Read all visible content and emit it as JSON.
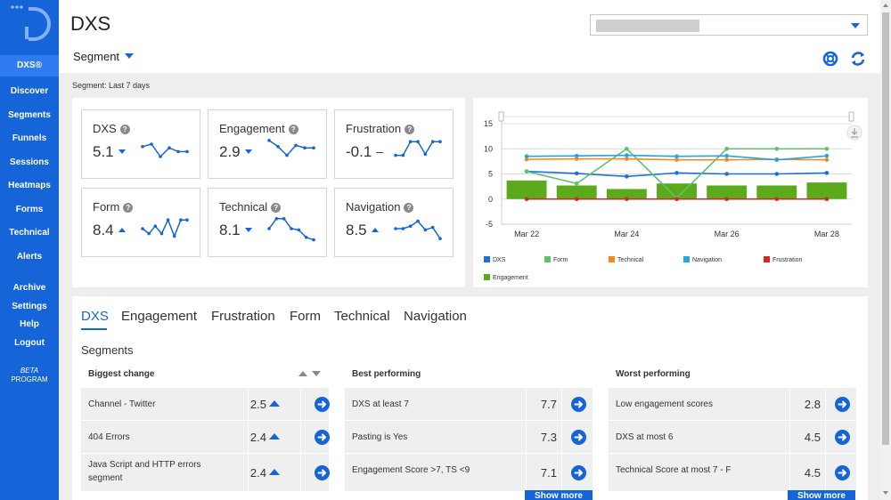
{
  "app": {
    "title": "DXS"
  },
  "header": {
    "segment_label": "Segment",
    "site_select_value": ""
  },
  "sidebar": {
    "items": [
      {
        "label": "DXS®",
        "active": true
      },
      {
        "label": "Discover"
      },
      {
        "label": "Segments"
      },
      {
        "label": "Funnels"
      },
      {
        "label": "Sessions"
      },
      {
        "label": "Heatmaps"
      },
      {
        "label": "Forms"
      },
      {
        "label": "Technical"
      },
      {
        "label": "Alerts"
      },
      {
        "label": "Archive"
      },
      {
        "label": "Settings"
      },
      {
        "label": "Help"
      },
      {
        "label": "Logout"
      }
    ],
    "beta_line1": "BETA",
    "beta_line2": "PROGRAM"
  },
  "segment_info": "Segment: Last 7 days",
  "metrics": [
    {
      "name": "DXS",
      "value": "5.1",
      "trend": "down",
      "spark": [
        0.65,
        0.75,
        0.25,
        0.6,
        0.45,
        0.45
      ]
    },
    {
      "name": "Engagement",
      "value": "2.9",
      "trend": "down",
      "spark": [
        0.9,
        0.65,
        0.3,
        0.7,
        0.6,
        0.6
      ]
    },
    {
      "name": "Frustration",
      "value": "-0.1",
      "trend": "flat",
      "spark": [
        0.3,
        0.3,
        0.85,
        0.85,
        0.35,
        0.85,
        0.85
      ]
    },
    {
      "name": "Form",
      "value": "8.4",
      "trend": "up",
      "spark": [
        0.5,
        0.3,
        0.6,
        0.3,
        0.85,
        0.2,
        0.85,
        0.85
      ]
    },
    {
      "name": "Technical",
      "value": "8.1",
      "trend": "down",
      "spark": [
        0.5,
        0.9,
        0.9,
        0.5,
        0.45,
        0.15,
        0.05
      ]
    },
    {
      "name": "Navigation",
      "value": "8.5",
      "trend": "up",
      "spark": [
        0.5,
        0.5,
        0.6,
        0.8,
        0.45,
        0.55,
        0.1
      ]
    }
  ],
  "chart_data": {
    "type": "line",
    "x": [
      "Mar 22",
      "Mar 23",
      "Mar 24",
      "Mar 25",
      "Mar 26",
      "Mar 27",
      "Mar 28"
    ],
    "x_tick_labels": [
      "Mar 22",
      "Mar 24",
      "Mar 26",
      "Mar 28"
    ],
    "ylim": [
      -5,
      15
    ],
    "y_ticks": [
      "15",
      "10",
      "5",
      "0",
      "-5"
    ],
    "grid": true,
    "legend_position": "bottom-left",
    "series": [
      {
        "name": "DXS",
        "type": "line",
        "color": "#1f6fd8",
        "values": [
          5.5,
          5.1,
          4.5,
          5.2,
          5.0,
          5.0,
          5.2
        ]
      },
      {
        "name": "Form",
        "type": "line",
        "color": "#5cc36a",
        "values": [
          5.5,
          3.1,
          10.0,
          0.2,
          10.0,
          10.0,
          10.0
        ]
      },
      {
        "name": "Technical",
        "type": "line",
        "color": "#f08a24",
        "values": [
          7.9,
          8.0,
          8.0,
          7.8,
          7.8,
          7.9,
          7.8
        ]
      },
      {
        "name": "Navigation",
        "type": "line",
        "color": "#29a3e0",
        "values": [
          8.5,
          8.6,
          8.7,
          8.5,
          8.6,
          7.8,
          8.6
        ]
      },
      {
        "name": "Frustration",
        "type": "line",
        "color": "#d62728",
        "values": [
          0,
          0,
          0,
          0,
          0,
          0,
          0
        ]
      },
      {
        "name": "Engagement",
        "type": "bar",
        "color": "#5aaa1b",
        "values": [
          3.7,
          2.7,
          2.0,
          3.1,
          2.7,
          2.7,
          3.3
        ]
      }
    ]
  },
  "tabs": [
    {
      "label": "DXS",
      "active": true
    },
    {
      "label": "Engagement"
    },
    {
      "label": "Frustration"
    },
    {
      "label": "Form"
    },
    {
      "label": "Technical"
    },
    {
      "label": "Navigation"
    }
  ],
  "segments": {
    "heading": "Segments",
    "columns": [
      {
        "title": "Biggest change",
        "rows": [
          {
            "label": "Channel - Twitter",
            "value": "2.5",
            "trend": "up"
          },
          {
            "label": "404 Errors",
            "value": "2.4",
            "trend": "up"
          },
          {
            "label": "Java Script and HTTP errors segment",
            "value": "2.4",
            "trend": "up"
          }
        ]
      },
      {
        "title": "Best performing",
        "rows": [
          {
            "label": "DXS at least 7",
            "value": "7.7"
          },
          {
            "label": "Pasting is Yes",
            "value": "7.3"
          },
          {
            "label": "Engagement Score >7, TS <9",
            "value": "7.1"
          }
        ],
        "show_more": "Show more"
      },
      {
        "title": "Worst performing",
        "rows": [
          {
            "label": "Low engagement scores",
            "value": "2.8"
          },
          {
            "label": "DXS at most 6",
            "value": "4.5"
          },
          {
            "label": "Technical Score at most 7 - F",
            "value": "4.5"
          }
        ],
        "show_more": "Show more"
      }
    ]
  },
  "colors": {
    "brand": "#1565d8",
    "sidebar_active": "#2f7cf0"
  }
}
